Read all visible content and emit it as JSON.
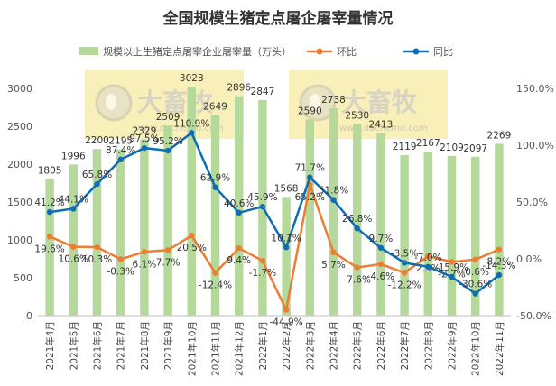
{
  "chart_data": {
    "type": "bar",
    "title": "全国规模生猪定点屠企屠宰量情况",
    "categories": [
      "2021年4月",
      "2021年5月",
      "2021年6月",
      "2021年7月",
      "2021年8月",
      "2021年9月",
      "2021年10月",
      "2021年11月",
      "2021年12月",
      "2022年1月",
      "2022年2月",
      "2022年3月",
      "2022年4月",
      "2022年5月",
      "2022年6月",
      "2022年7月",
      "2022年8月",
      "2022年9月",
      "2022年10月",
      "2022年11月"
    ],
    "series": [
      {
        "name": "规模以上生猪定点屠宰企业屠宰量（万头）",
        "type": "bar",
        "axis": "left",
        "color": "#b5d99a",
        "values": [
          1805,
          1996,
          2200,
          2195,
          2329,
          2509,
          3023,
          2649,
          2896,
          2847,
          1568,
          2590,
          2738,
          2530,
          2413,
          2119,
          2167,
          2109,
          2097,
          2269
        ]
      },
      {
        "name": "环比",
        "type": "line",
        "axis": "right",
        "color": "#ed7d31",
        "values": [
          19.6,
          10.6,
          10.3,
          -0.3,
          6.1,
          7.7,
          20.5,
          -12.4,
          9.4,
          -1.7,
          -44.9,
          65.2,
          5.7,
          -7.6,
          -4.6,
          -12.2,
          2.3,
          -2.7,
          -0.6,
          8.2
        ],
        "labels": [
          "19.6%",
          "10.6%",
          "10.3%",
          "-0.3%",
          "6.1%",
          "7.7%",
          "20.5%",
          "-12.4%",
          "9.4%",
          "-1.7%",
          "-44.9%",
          "65.2%",
          "5.7%",
          "-7.6%",
          "-4.6%",
          "-12.2%",
          "2.3%",
          "-2.7%",
          "-0.6%",
          "8.2%"
        ]
      },
      {
        "name": "同比",
        "type": "line",
        "axis": "right",
        "color": "#0f6db5",
        "values": [
          41.2,
          44.1,
          65.8,
          87.4,
          97.5,
          95.2,
          110.9,
          62.9,
          40.6,
          45.9,
          10.1,
          71.7,
          51.8,
          26.8,
          9.7,
          -3.5,
          -7.0,
          -15.9,
          -30.6,
          -14.3
        ],
        "labels": [
          "41.2%",
          "44.1%",
          "65.8%",
          "87.4%",
          "97.5%",
          "95.2%",
          "110.9%",
          "62.9%",
          "40.6%",
          "45.9%",
          "10.1%",
          "71.7%",
          "51.8%",
          "26.8%",
          "9.7%",
          "-3.5%",
          "-7.0%",
          "-15.9%",
          "-30.6%",
          "-14.3%"
        ]
      }
    ],
    "y_left": {
      "min": 0,
      "max": 3000,
      "ticks": [
        0,
        500,
        1000,
        1500,
        2000,
        2500,
        3000
      ],
      "tick_labels": [
        "0",
        "500",
        "1000",
        "1500",
        "2000",
        "2500",
        "3000"
      ]
    },
    "y_right": {
      "min": -50,
      "max": 150,
      "ticks": [
        -50,
        0,
        50,
        100,
        150
      ],
      "tick_labels": [
        "-50.0%",
        "0.0%",
        "50.0%",
        "100.0%",
        "150.0%"
      ]
    },
    "legend": {
      "position": "top"
    },
    "watermark": {
      "brand": "大畜牧",
      "url": "www.dachemu.com"
    },
    "colors": {
      "bar": "#b5d99a",
      "mom": "#ed7d31",
      "yoy": "#0f6db5",
      "watermark_bg": "#f5eba0"
    }
  }
}
